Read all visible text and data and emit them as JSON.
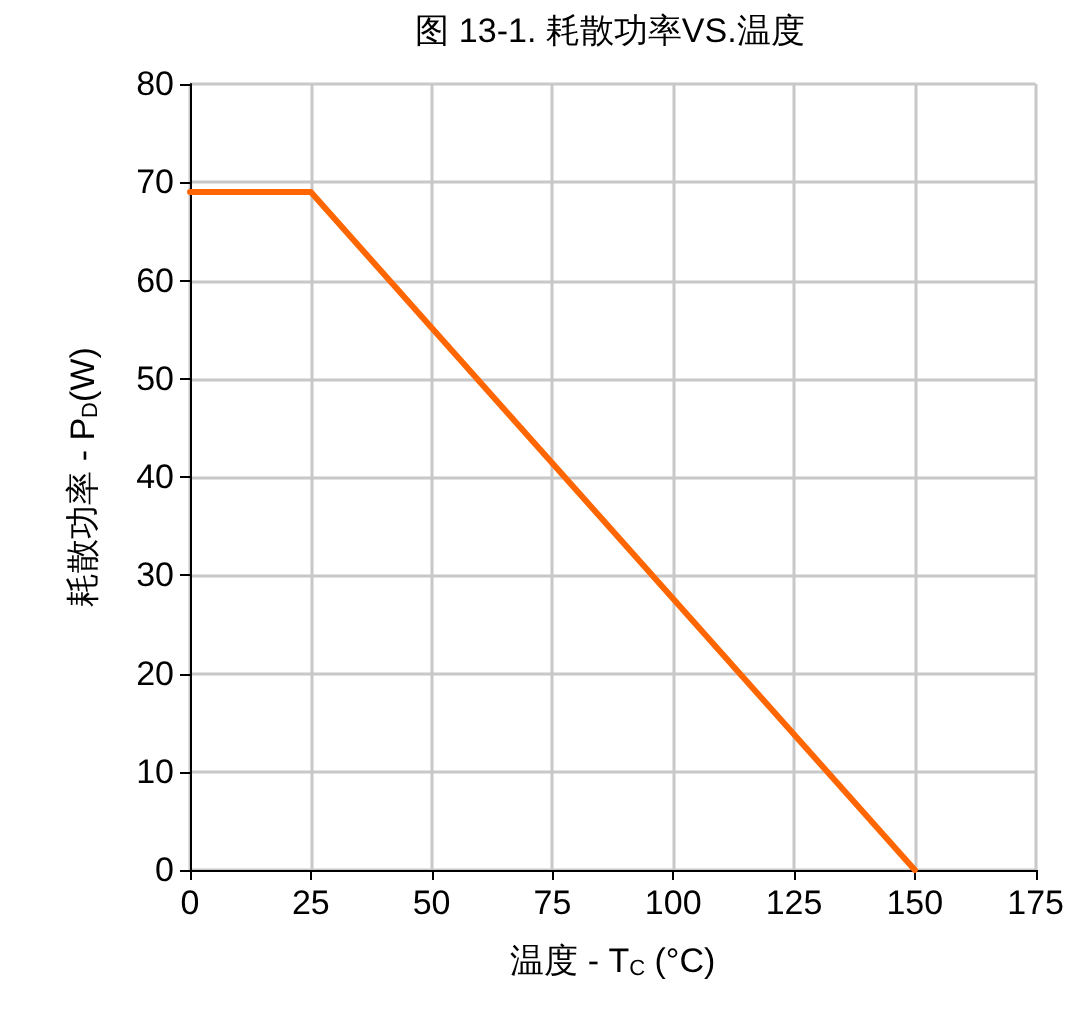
{
  "chart_data": {
    "type": "line",
    "title": "图 13-1. 耗散功率VS.温度",
    "xlabel": "温度 - T$_{C}$ (°C)",
    "ylabel": "耗散功率 - P$_{D}$(W)",
    "x": [
      0,
      25,
      150
    ],
    "series": [
      {
        "color": "#ff6600",
        "values": [
          69,
          69,
          0
        ]
      }
    ],
    "xlim": [
      0,
      175
    ],
    "xticks": [
      0,
      25,
      50,
      75,
      100,
      125,
      150,
      175
    ],
    "ylim": [
      0,
      80
    ],
    "yticks": [
      0,
      10,
      20,
      30,
      40,
      50,
      60,
      70,
      80
    ],
    "grid": true,
    "marker": "none",
    "line_style": "solid"
  }
}
